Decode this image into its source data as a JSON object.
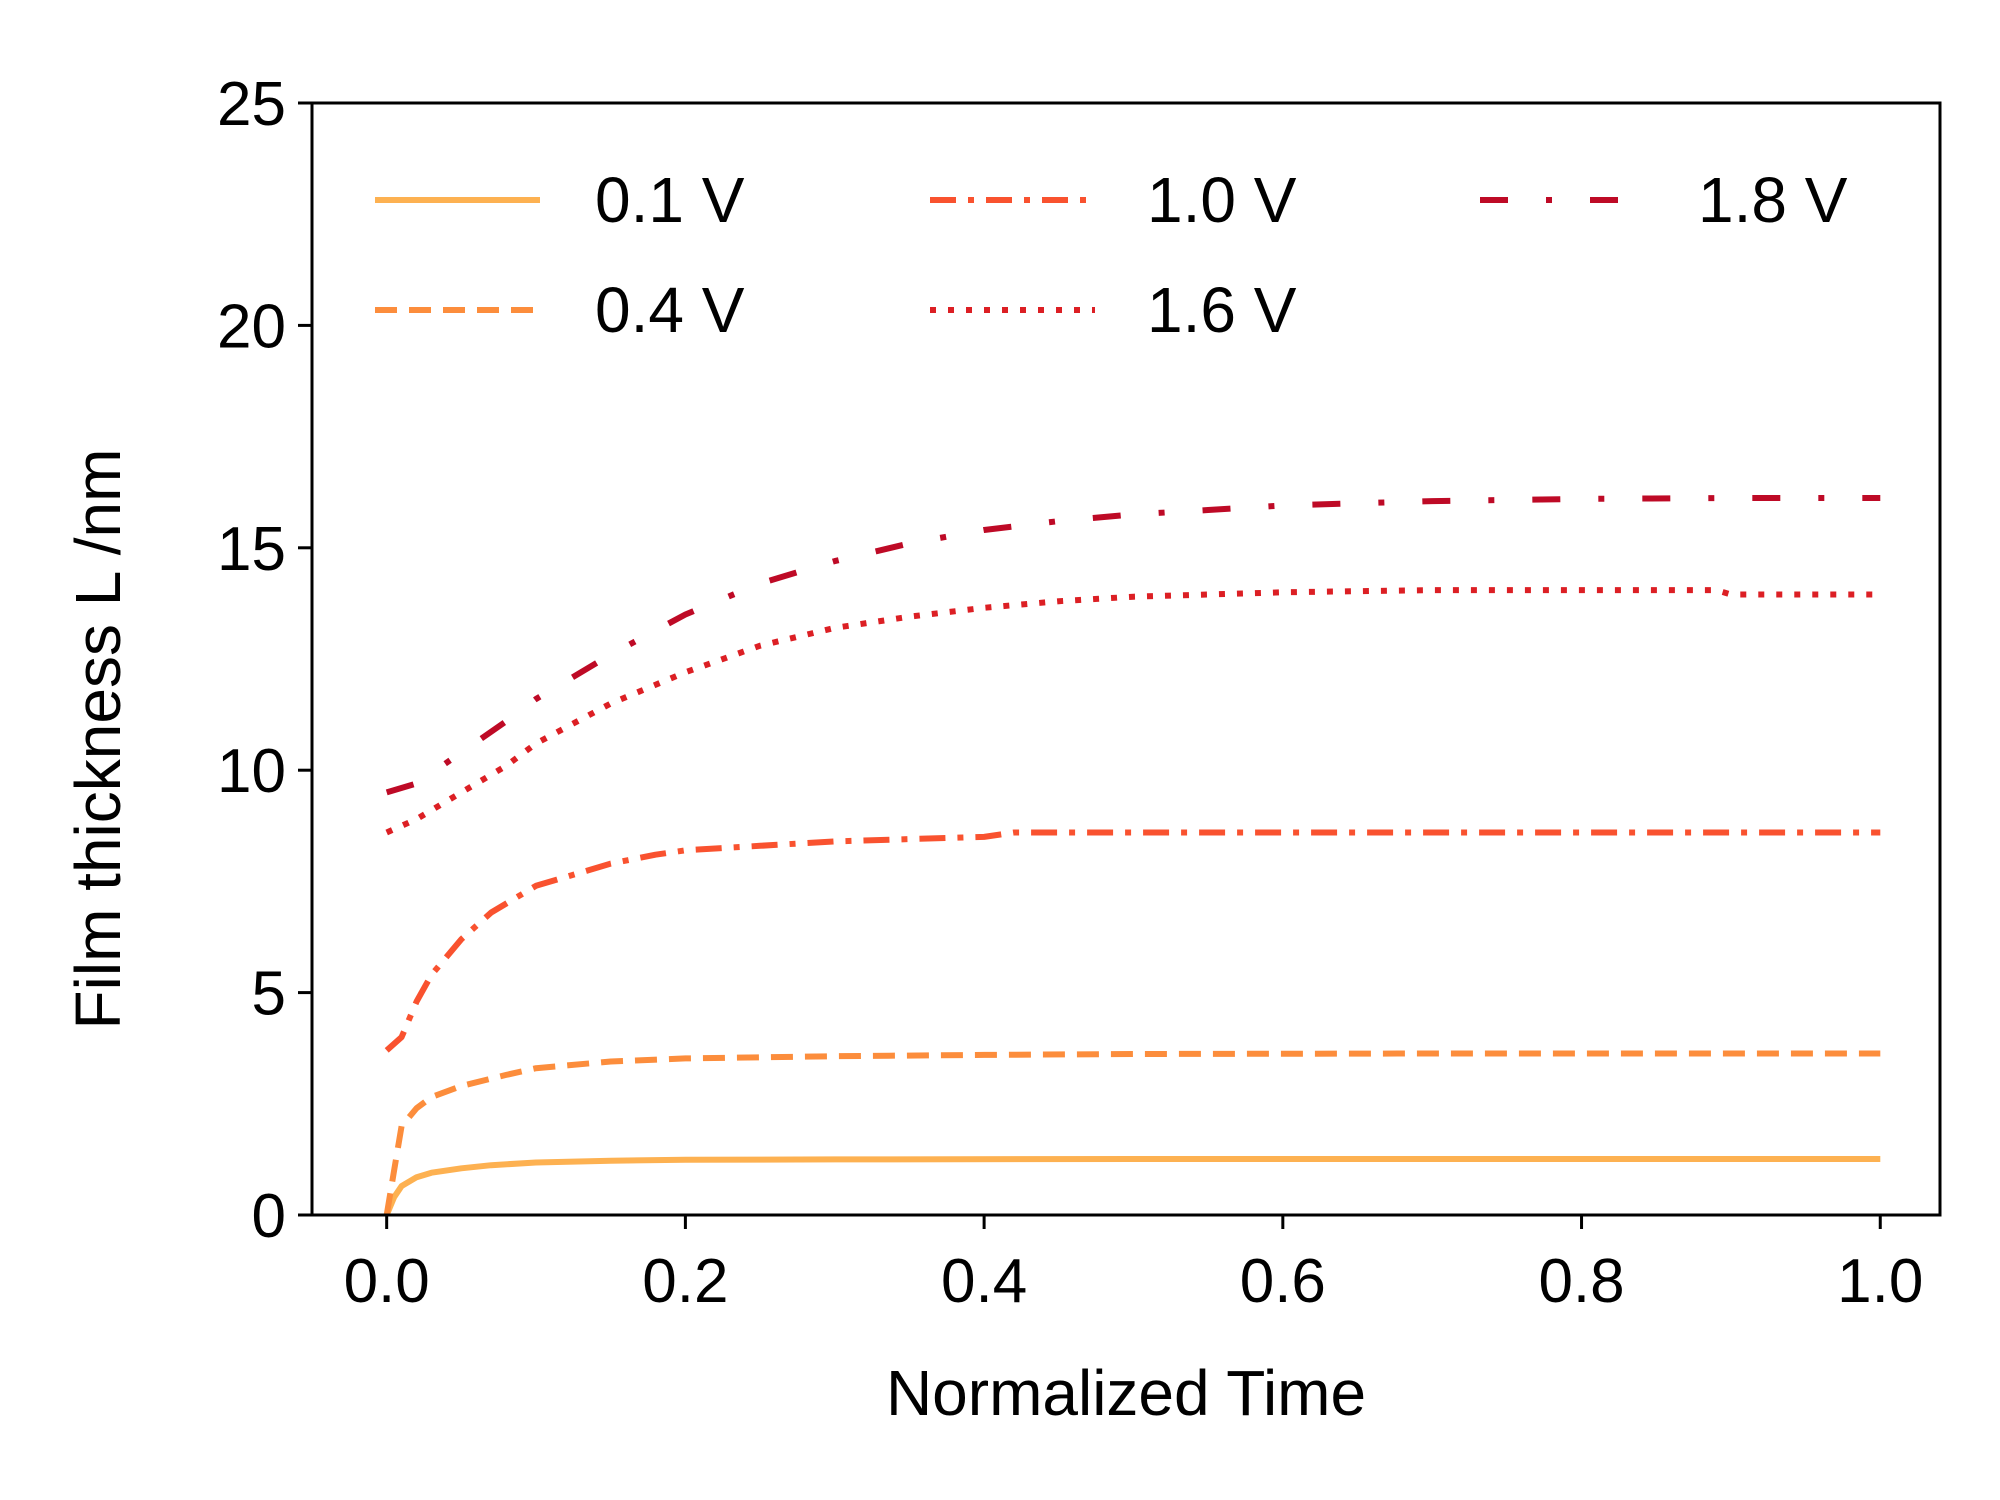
{
  "chart_data": {
    "type": "line",
    "title": "",
    "xlabel": "Normalized Time",
    "ylabel": "Film thickness L /nm",
    "xlim": [
      -0.05,
      1.04
    ],
    "ylim": [
      0,
      25
    ],
    "xticks": [
      0.0,
      0.2,
      0.4,
      0.6,
      0.8,
      1.0
    ],
    "xtick_labels": [
      "0.0",
      "0.2",
      "0.4",
      "0.6",
      "0.8",
      "1.0"
    ],
    "yticks": [
      0,
      5,
      10,
      15,
      20,
      25
    ],
    "ytick_labels": [
      "0",
      "5",
      "10",
      "15",
      "20",
      "25"
    ],
    "grid": false,
    "legend": {
      "position": "top",
      "columns": 3
    },
    "series": [
      {
        "name": "0.1 V",
        "color": "#FDB151",
        "dash": "solid",
        "x": [
          0,
          0.005,
          0.01,
          0.02,
          0.03,
          0.05,
          0.07,
          0.1,
          0.15,
          0.2,
          0.3,
          0.5,
          0.7,
          1.0
        ],
        "y": [
          0,
          0.4,
          0.65,
          0.85,
          0.95,
          1.05,
          1.12,
          1.18,
          1.22,
          1.24,
          1.25,
          1.26,
          1.26,
          1.26
        ]
      },
      {
        "name": "0.4 V",
        "color": "#FC8D3C",
        "dash": "dashed",
        "x": [
          0,
          0.005,
          0.01,
          0.02,
          0.03,
          0.05,
          0.08,
          0.1,
          0.15,
          0.2,
          0.3,
          0.4,
          0.5,
          0.7,
          1.0
        ],
        "y": [
          0,
          1.0,
          2.0,
          2.4,
          2.65,
          2.9,
          3.15,
          3.3,
          3.45,
          3.52,
          3.57,
          3.6,
          3.62,
          3.63,
          3.63
        ]
      },
      {
        "name": "1.0 V",
        "color": "#F9522F",
        "dash": "dashdot",
        "x": [
          0,
          0.01,
          0.02,
          0.03,
          0.05,
          0.07,
          0.1,
          0.12,
          0.15,
          0.18,
          0.2,
          0.25,
          0.3,
          0.35,
          0.4,
          0.42,
          0.5,
          0.6,
          0.8,
          1.0
        ],
        "y": [
          3.7,
          4.0,
          4.8,
          5.4,
          6.2,
          6.8,
          7.4,
          7.6,
          7.9,
          8.1,
          8.2,
          8.3,
          8.4,
          8.45,
          8.5,
          8.6,
          8.6,
          8.6,
          8.6,
          8.6
        ]
      },
      {
        "name": "1.6 V",
        "color": "#DC1F24",
        "dash": "dotted",
        "x": [
          0,
          0.02,
          0.05,
          0.08,
          0.1,
          0.15,
          0.2,
          0.25,
          0.3,
          0.35,
          0.4,
          0.45,
          0.5,
          0.6,
          0.7,
          0.8,
          0.89,
          0.9,
          1.0
        ],
        "y": [
          8.6,
          8.9,
          9.5,
          10.1,
          10.6,
          11.5,
          12.2,
          12.8,
          13.2,
          13.45,
          13.65,
          13.8,
          13.9,
          14.0,
          14.05,
          14.05,
          14.05,
          13.95,
          13.95
        ]
      },
      {
        "name": "1.8 V",
        "color": "#BE0A26",
        "dash": "loosedash",
        "x": [
          0,
          0.02,
          0.05,
          0.08,
          0.1,
          0.15,
          0.2,
          0.25,
          0.3,
          0.35,
          0.4,
          0.45,
          0.5,
          0.55,
          0.6,
          0.7,
          0.8,
          0.9,
          1.0
        ],
        "y": [
          9.5,
          9.7,
          10.4,
          11.1,
          11.6,
          12.6,
          13.5,
          14.2,
          14.7,
          15.1,
          15.4,
          15.6,
          15.75,
          15.85,
          15.95,
          16.05,
          16.1,
          16.12,
          16.12
        ]
      }
    ]
  }
}
